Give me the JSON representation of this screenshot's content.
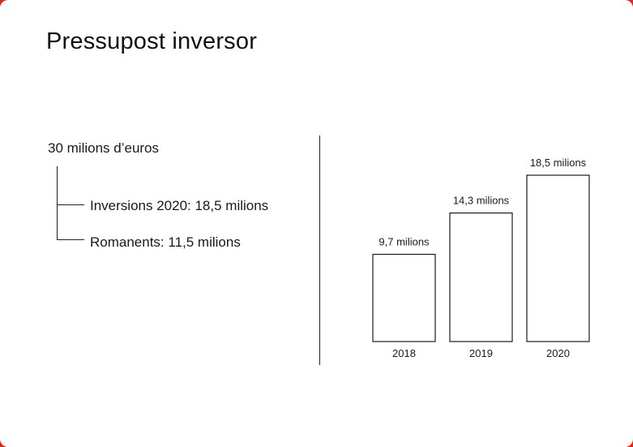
{
  "title": "Pressupost inversor",
  "budget": {
    "total": "30 milions d’euros",
    "items": [
      {
        "label": "Inversions 2020: 18,5 milions"
      },
      {
        "label": "Romanents: 11,5 milions"
      }
    ]
  },
  "colors": {
    "border": "#e0261d",
    "background": "#ffffff",
    "ink": "#1a1a1a"
  },
  "chart_data": {
    "type": "bar",
    "title": "",
    "xlabel": "",
    "ylabel": "",
    "categories": [
      "2018",
      "2019",
      "2020"
    ],
    "values": [
      9.7,
      14.3,
      18.5
    ],
    "data_labels": [
      "9,7 milions",
      "14,3 milions",
      "18,5 milions"
    ],
    "unit": "milions",
    "ylim": [
      0,
      18.5
    ],
    "grid": false,
    "legend": "none",
    "bar_fill": "#ffffff",
    "bar_stroke": "#1a1a1a"
  }
}
